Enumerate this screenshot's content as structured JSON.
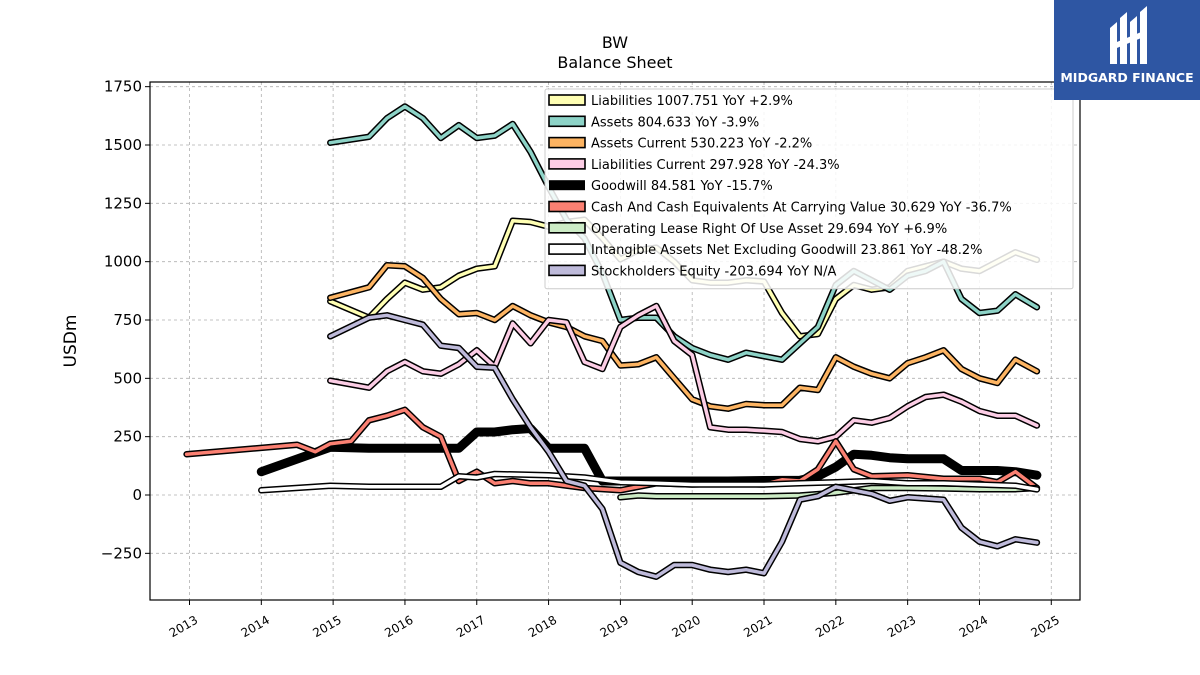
{
  "title": "BW",
  "subtitle": "Balance  Sheet",
  "logo": {
    "text": "MIDGARD FINANCE"
  },
  "chart_data": {
    "type": "line",
    "ylabel": "USDm",
    "xlabel": "",
    "xlim": [
      2012.45,
      2025.4
    ],
    "ylim": [
      -450,
      1770
    ],
    "grid": true,
    "legend_position": "top-right",
    "x_ticks": [
      2013,
      2014,
      2015,
      2016,
      2017,
      2018,
      2019,
      2020,
      2021,
      2022,
      2023,
      2024,
      2025
    ],
    "y_ticks": [
      -250,
      0,
      250,
      500,
      750,
      1000,
      1250,
      1500,
      1750
    ],
    "y_tick_labels": [
      "−250",
      "0",
      "250",
      "500",
      "750",
      "1000",
      "1250",
      "1500",
      "1750"
    ],
    "series": [
      {
        "name": "Liabilities",
        "label": "Liabilities  1007.751 YoY +2.9%",
        "color": "#ffffb3",
        "width": 3.5,
        "x": [
          2014.96,
          2015.5,
          2015.75,
          2016.0,
          2016.25,
          2016.5,
          2016.75,
          2017.0,
          2017.25,
          2017.5,
          2017.75,
          2018.0,
          2018.25,
          2018.5,
          2018.75,
          2019.0,
          2019.25,
          2019.5,
          2019.75,
          2020.0,
          2020.25,
          2020.5,
          2020.75,
          2021.0,
          2021.25,
          2021.5,
          2021.75,
          2022.0,
          2022.25,
          2022.5,
          2022.75,
          2023.0,
          2023.25,
          2023.5,
          2023.75,
          2024.0,
          2024.25,
          2024.5,
          2024.8
        ],
        "values": [
          830,
          760,
          840,
          910,
          880,
          890,
          940,
          970,
          980,
          1175,
          1170,
          1150,
          1170,
          1180,
          1100,
          1010,
          1050,
          1060,
          1000,
          920,
          910,
          910,
          920,
          915,
          780,
          680,
          690,
          840,
          900,
          880,
          890,
          960,
          980,
          1000,
          970,
          960,
          1000,
          1040,
          1008
        ]
      },
      {
        "name": "Assets",
        "label": "Assets  804.633 YoY -3.9%",
        "color": "#8dd3c7",
        "width": 3.5,
        "x": [
          2014.96,
          2015.5,
          2015.75,
          2016.0,
          2016.25,
          2016.5,
          2016.75,
          2017.0,
          2017.25,
          2017.5,
          2017.75,
          2018.0,
          2018.25,
          2018.5,
          2018.75,
          2019.0,
          2019.25,
          2019.5,
          2019.75,
          2020.0,
          2020.25,
          2020.5,
          2020.75,
          2021.0,
          2021.25,
          2021.5,
          2021.75,
          2022.0,
          2022.25,
          2022.5,
          2022.75,
          2023.0,
          2023.25,
          2023.5,
          2023.75,
          2024.0,
          2024.25,
          2024.5,
          2024.8
        ],
        "values": [
          1510,
          1535,
          1615,
          1665,
          1615,
          1530,
          1585,
          1530,
          1540,
          1590,
          1470,
          1320,
          1180,
          1100,
          950,
          750,
          760,
          760,
          680,
          630,
          600,
          580,
          610,
          595,
          580,
          650,
          720,
          900,
          960,
          920,
          880,
          940,
          960,
          1000,
          840,
          780,
          790,
          860,
          805
        ]
      },
      {
        "name": "Assets Current",
        "label": "Assets Current  530.223 YoY -2.2%",
        "color": "#fdb462",
        "width": 3.5,
        "x": [
          2014.96,
          2015.5,
          2015.75,
          2016.0,
          2016.25,
          2016.5,
          2016.75,
          2017.0,
          2017.25,
          2017.5,
          2017.75,
          2018.0,
          2018.25,
          2018.5,
          2018.75,
          2019.0,
          2019.25,
          2019.5,
          2019.75,
          2020.0,
          2020.25,
          2020.5,
          2020.75,
          2021.0,
          2021.25,
          2021.5,
          2021.75,
          2022.0,
          2022.25,
          2022.5,
          2022.75,
          2023.0,
          2023.25,
          2023.5,
          2023.75,
          2024.0,
          2024.25,
          2024.5,
          2024.8
        ],
        "values": [
          845,
          890,
          985,
          980,
          930,
          840,
          775,
          780,
          750,
          810,
          770,
          740,
          720,
          680,
          660,
          555,
          560,
          590,
          500,
          410,
          380,
          370,
          390,
          385,
          385,
          460,
          450,
          590,
          550,
          520,
          500,
          565,
          590,
          620,
          540,
          500,
          480,
          580,
          530
        ]
      },
      {
        "name": "Liabilities Current",
        "label": "Liabilities Current  297.928 YoY -24.3%",
        "color": "#fccde5",
        "width": 3.5,
        "x": [
          2014.96,
          2015.5,
          2015.75,
          2016.0,
          2016.25,
          2016.5,
          2016.75,
          2017.0,
          2017.25,
          2017.5,
          2017.75,
          2018.0,
          2018.25,
          2018.5,
          2018.75,
          2019.0,
          2019.25,
          2019.5,
          2019.75,
          2020.0,
          2020.25,
          2020.5,
          2020.75,
          2021.0,
          2021.25,
          2021.5,
          2021.75,
          2022.0,
          2022.25,
          2022.5,
          2022.75,
          2023.0,
          2023.25,
          2023.5,
          2023.75,
          2024.0,
          2024.25,
          2024.5,
          2024.8
        ],
        "values": [
          490,
          460,
          530,
          570,
          530,
          520,
          560,
          620,
          550,
          735,
          650,
          750,
          740,
          570,
          540,
          720,
          770,
          810,
          660,
          600,
          290,
          280,
          280,
          275,
          270,
          240,
          230,
          250,
          320,
          310,
          330,
          380,
          420,
          430,
          400,
          360,
          340,
          340,
          298
        ]
      },
      {
        "name": "Goodwill",
        "label": "Goodwill  84.581 YoY -15.7%",
        "color": "#000000",
        "width": 9,
        "no_outline": true,
        "x": [
          2014.0,
          2014.96,
          2015.5,
          2016.0,
          2016.5,
          2016.75,
          2017.0,
          2017.25,
          2017.5,
          2017.75,
          2018.0,
          2018.25,
          2018.5,
          2018.75,
          2019.0,
          2019.5,
          2020.0,
          2020.5,
          2021.0,
          2021.5,
          2021.75,
          2022.0,
          2022.25,
          2022.5,
          2022.75,
          2023.0,
          2023.25,
          2023.5,
          2023.75,
          2024.0,
          2024.25,
          2024.5,
          2024.8
        ],
        "values": [
          100,
          205,
          200,
          200,
          200,
          200,
          270,
          270,
          280,
          285,
          200,
          200,
          200,
          60,
          60,
          60,
          60,
          60,
          62,
          63,
          80,
          120,
          175,
          170,
          160,
          155,
          155,
          155,
          105,
          105,
          105,
          100,
          85
        ]
      },
      {
        "name": "Cash And Cash Equivalents At Carrying Value",
        "label": "Cash And Cash Equivalents At Carrying Value  30.629 YoY -36.7%",
        "color": "#fb8072",
        "width": 3.5,
        "x": [
          2012.96,
          2014.5,
          2014.75,
          2014.96,
          2015.25,
          2015.5,
          2015.75,
          2016.0,
          2016.25,
          2016.5,
          2016.75,
          2017.0,
          2017.25,
          2017.5,
          2017.75,
          2018.0,
          2018.5,
          2019.0,
          2019.5,
          2020.0,
          2020.5,
          2021.0,
          2021.25,
          2021.5,
          2021.75,
          2022.0,
          2022.25,
          2022.5,
          2023.0,
          2023.5,
          2024.0,
          2024.25,
          2024.5,
          2024.8
        ],
        "values": [
          175,
          215,
          185,
          220,
          230,
          320,
          340,
          365,
          290,
          250,
          60,
          100,
          50,
          60,
          50,
          50,
          30,
          20,
          50,
          45,
          50,
          45,
          65,
          60,
          110,
          230,
          110,
          80,
          85,
          70,
          70,
          55,
          100,
          30
        ]
      },
      {
        "name": "Operating Lease Right Of Use Asset",
        "label": "Operating Lease Right Of Use Asset  29.694 YoY +6.9%",
        "color": "#ccebc5",
        "width": 3.5,
        "x": [
          2019.0,
          2019.25,
          2019.5,
          2020.0,
          2020.5,
          2021.0,
          2021.5,
          2022.0,
          2022.5,
          2023.0,
          2023.5,
          2024.0,
          2024.5,
          2024.8
        ],
        "values": [
          -10,
          -2,
          -5,
          -5,
          -5,
          -5,
          -2,
          10,
          30,
          30,
          28,
          25,
          25,
          30
        ]
      },
      {
        "name": "Intangible Assets Net Excluding Goodwill",
        "label": "Intangible Assets Net Excluding Goodwill  23.861 YoY -48.2%",
        "color": "#ffffff",
        "width": 3.5,
        "x": [
          2014.0,
          2014.96,
          2015.5,
          2016.0,
          2016.5,
          2016.75,
          2017.0,
          2017.25,
          2018.0,
          2018.5,
          2019.0,
          2019.5,
          2020.0,
          2020.5,
          2021.0,
          2021.5,
          2022.0,
          2022.5,
          2023.0,
          2023.5,
          2024.0,
          2024.5,
          2024.8
        ],
        "values": [
          20,
          40,
          35,
          35,
          35,
          80,
          75,
          90,
          85,
          75,
          55,
          50,
          45,
          45,
          45,
          50,
          55,
          60,
          50,
          50,
          45,
          40,
          24
        ]
      },
      {
        "name": "Stockholders Equity",
        "label": "Stockholders Equity  -203.694 YoY N/A",
        "color": "#bebada",
        "width": 3.5,
        "x": [
          2014.96,
          2015.5,
          2015.75,
          2016.0,
          2016.25,
          2016.5,
          2016.75,
          2017.0,
          2017.25,
          2017.5,
          2017.75,
          2018.0,
          2018.25,
          2018.5,
          2018.75,
          2019.0,
          2019.25,
          2019.5,
          2019.75,
          2020.0,
          2020.25,
          2020.5,
          2020.75,
          2021.0,
          2021.25,
          2021.5,
          2021.75,
          2022.0,
          2022.25,
          2022.5,
          2022.75,
          2023.0,
          2023.25,
          2023.5,
          2023.75,
          2024.0,
          2024.25,
          2024.5,
          2024.8
        ],
        "values": [
          680,
          760,
          770,
          750,
          730,
          640,
          630,
          550,
          545,
          410,
          290,
          185,
          60,
          40,
          -60,
          -290,
          -330,
          -350,
          -300,
          -300,
          -320,
          -330,
          -320,
          -335,
          -200,
          -20,
          -5,
          35,
          20,
          5,
          -25,
          -10,
          -15,
          -20,
          -140,
          -200,
          -220,
          -190,
          -204
        ]
      }
    ]
  }
}
